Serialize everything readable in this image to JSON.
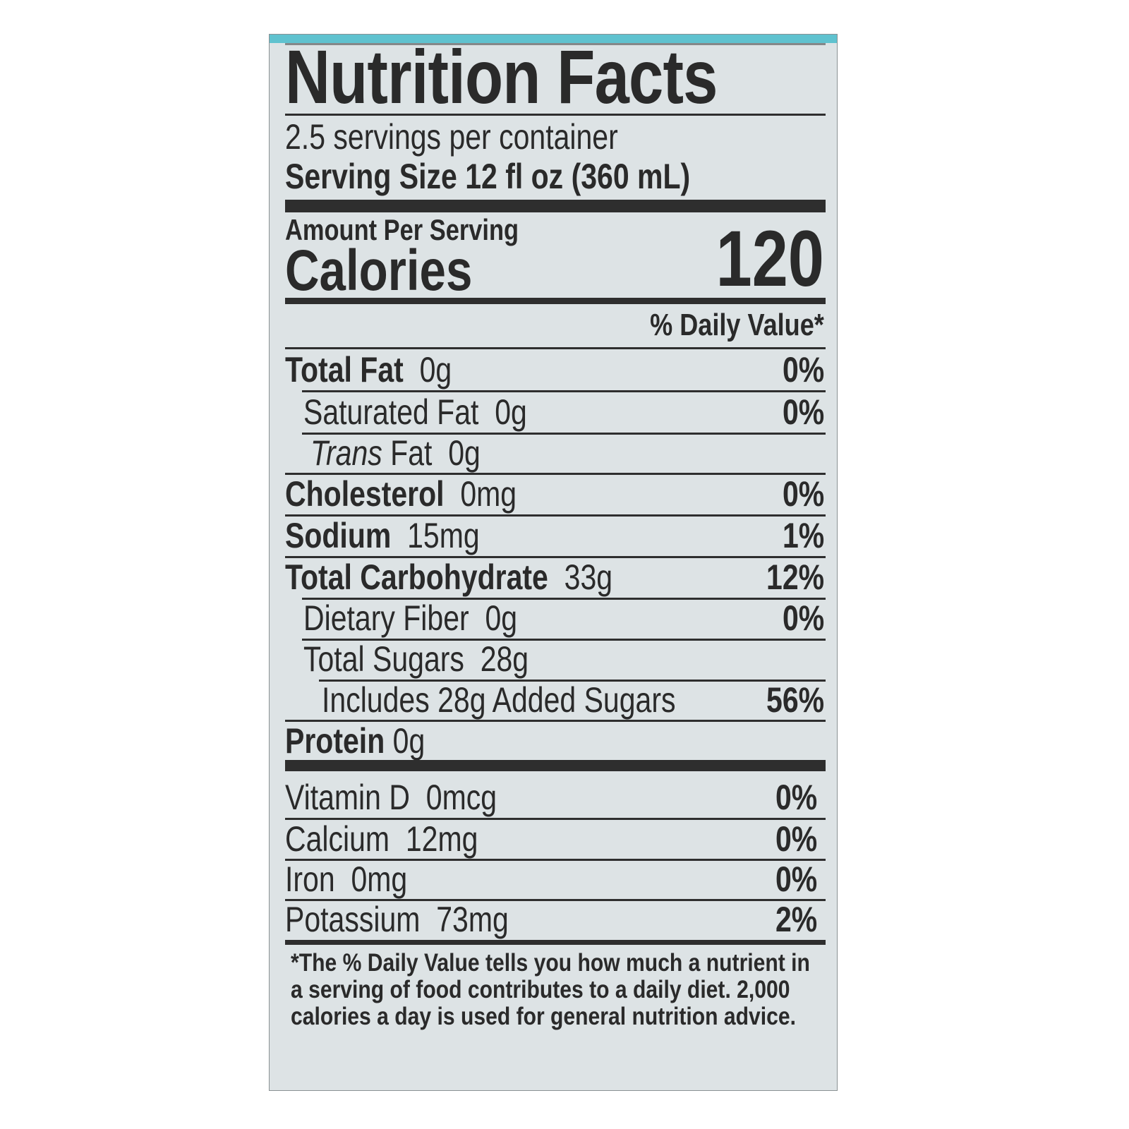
{
  "accent_color": "#5fc2cf",
  "label": {
    "title": "Nutrition Facts",
    "servings_per_container": "2.5 servings per container",
    "serving_size": "Serving Size 12 fl oz (360 mL)",
    "amount_per_serving": "Amount Per Serving",
    "calories_label": "Calories",
    "calories_value": "120",
    "daily_value_header": "% Daily Value*",
    "nutrients": [
      {
        "name": "Total Fat",
        "amount": "0g",
        "dv": "0%"
      },
      {
        "name": "Saturated Fat",
        "amount": "0g",
        "dv": "0%"
      },
      {
        "name": "Trans",
        "name_suffix": "Fat",
        "amount": "0g",
        "dv": ""
      },
      {
        "name": "Cholesterol",
        "amount": "0mg",
        "dv": "0%"
      },
      {
        "name": "Sodium",
        "amount": "15mg",
        "dv": "1%"
      },
      {
        "name": "Total Carbohydrate",
        "amount": "33g",
        "dv": "12%"
      },
      {
        "name": "Dietary Fiber",
        "amount": "0g",
        "dv": "0%"
      },
      {
        "name": "Total Sugars",
        "amount": "28g",
        "dv": ""
      },
      {
        "name": "Includes 28g Added Sugars",
        "amount": "",
        "dv": "56%"
      },
      {
        "name": "Protein",
        "amount": "0g",
        "dv": ""
      }
    ],
    "vitamins": [
      {
        "name": "Vitamin D",
        "amount": "0mcg",
        "dv": "0%"
      },
      {
        "name": "Calcium",
        "amount": "12mg",
        "dv": "0%"
      },
      {
        "name": "Iron",
        "amount": "0mg",
        "dv": "0%"
      },
      {
        "name": "Potassium",
        "amount": "73mg",
        "dv": "2%"
      }
    ],
    "footnote": "*The % Daily Value tells you how much a nutrient in a serving of food contributes to a daily diet. 2,000 calories a day is used for general nutrition advice."
  }
}
